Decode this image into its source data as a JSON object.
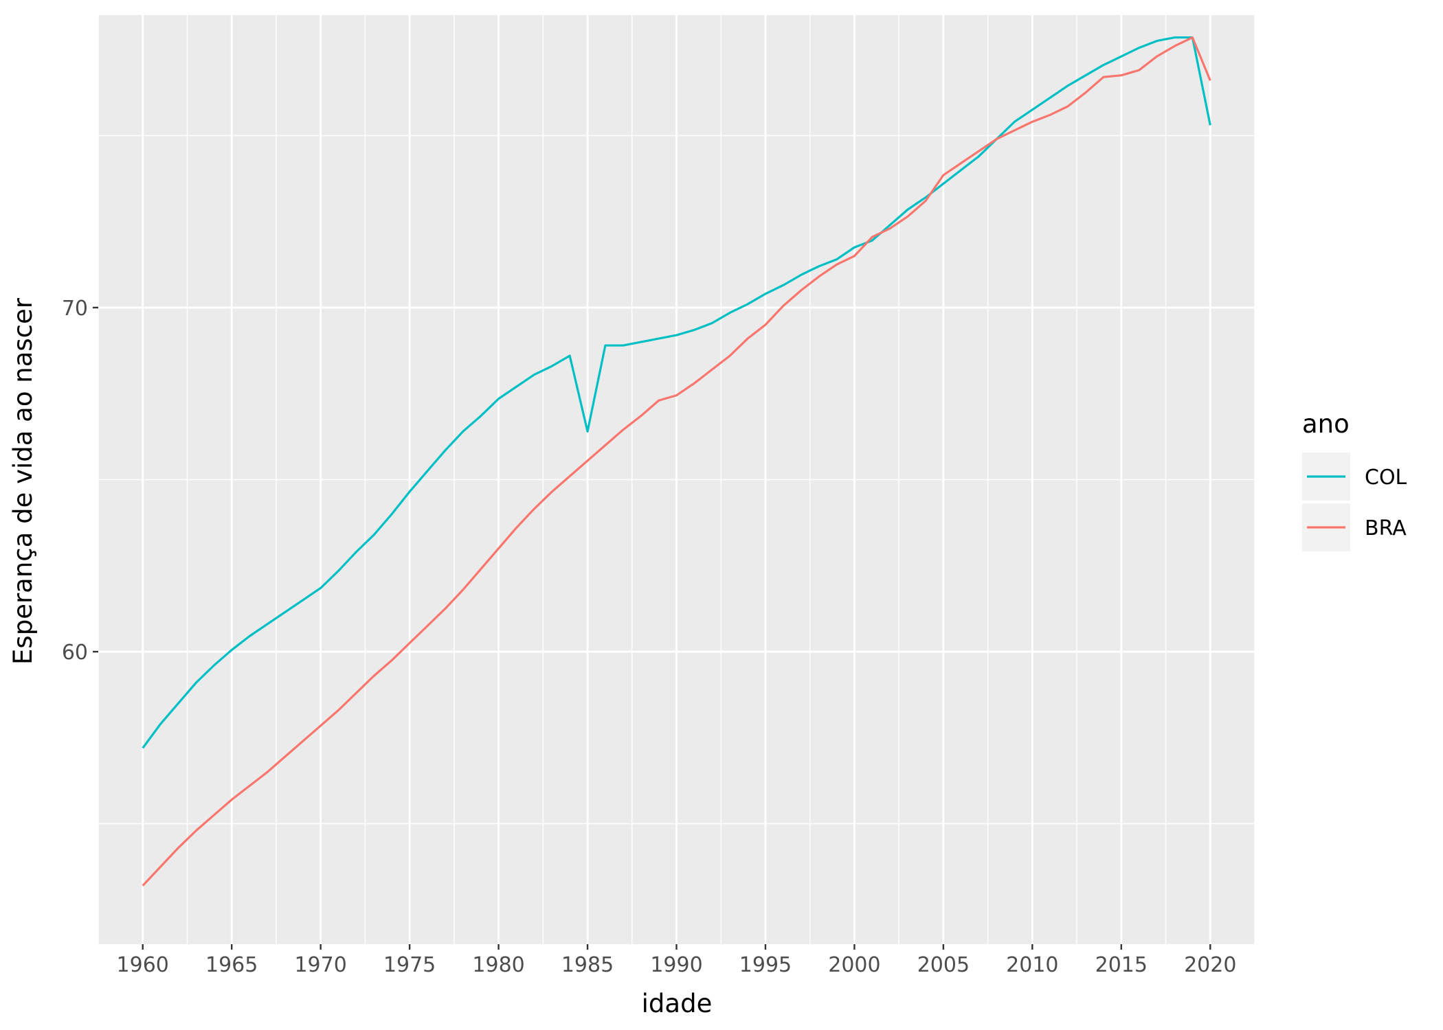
{
  "chart_data": {
    "type": "line",
    "title": "",
    "xlabel": "idade",
    "ylabel": "Esperança de vida ao nascer",
    "xlim": [
      1957.5,
      2022.5
    ],
    "ylim": [
      51.5,
      78.5
    ],
    "x_ticks": [
      1960,
      1965,
      1970,
      1975,
      1980,
      1985,
      1990,
      1995,
      2000,
      2005,
      2010,
      2015,
      2020
    ],
    "y_ticks": [
      60,
      70
    ],
    "grid": true,
    "legend": {
      "title": "ano",
      "position": "right"
    },
    "x": [
      1960,
      1961,
      1962,
      1963,
      1964,
      1965,
      1966,
      1967,
      1968,
      1969,
      1970,
      1971,
      1972,
      1973,
      1974,
      1975,
      1976,
      1977,
      1978,
      1979,
      1980,
      1981,
      1982,
      1983,
      1984,
      1985,
      1986,
      1987,
      1988,
      1989,
      1990,
      1991,
      1992,
      1993,
      1994,
      1995,
      1996,
      1997,
      1998,
      1999,
      2000,
      2001,
      2002,
      2003,
      2004,
      2005,
      2006,
      2007,
      2008,
      2009,
      2010,
      2011,
      2012,
      2013,
      2014,
      2015,
      2016,
      2017,
      2018,
      2019,
      2020
    ],
    "series": [
      {
        "name": "COL",
        "color": "#00BFC4",
        "values": [
          57.2,
          57.9,
          58.5,
          59.1,
          59.6,
          60.05,
          60.45,
          60.8,
          61.15,
          61.5,
          61.85,
          62.35,
          62.9,
          63.4,
          64.0,
          64.65,
          65.25,
          65.85,
          66.4,
          66.85,
          67.35,
          67.7,
          68.05,
          68.3,
          68.6,
          66.4,
          68.9,
          68.9,
          69.0,
          69.1,
          69.2,
          69.35,
          69.55,
          69.85,
          70.1,
          70.4,
          70.65,
          70.95,
          71.2,
          71.4,
          71.75,
          71.95,
          72.4,
          72.85,
          73.2,
          73.6,
          74.0,
          74.4,
          74.9,
          75.4,
          75.75,
          76.1,
          76.45,
          76.75,
          77.05,
          77.3,
          77.55,
          77.75,
          77.85,
          77.85,
          75.3
        ]
      },
      {
        "name": "BRA",
        "color": "#F8766D",
        "values": [
          53.2,
          53.75,
          54.3,
          54.8,
          55.25,
          55.7,
          56.1,
          56.5,
          56.95,
          57.4,
          57.85,
          58.3,
          58.8,
          59.3,
          59.75,
          60.25,
          60.75,
          61.25,
          61.8,
          62.4,
          63.0,
          63.6,
          64.15,
          64.65,
          65.1,
          65.55,
          66.0,
          66.45,
          66.85,
          67.3,
          67.45,
          67.8,
          68.2,
          68.6,
          69.1,
          69.5,
          70.05,
          70.5,
          70.9,
          71.25,
          71.5,
          72.05,
          72.3,
          72.65,
          73.1,
          73.85,
          74.2,
          74.55,
          74.9,
          75.15,
          75.4,
          75.6,
          75.85,
          76.25,
          76.7,
          76.75,
          76.9,
          77.3,
          77.6,
          77.85,
          76.6
        ]
      }
    ]
  }
}
